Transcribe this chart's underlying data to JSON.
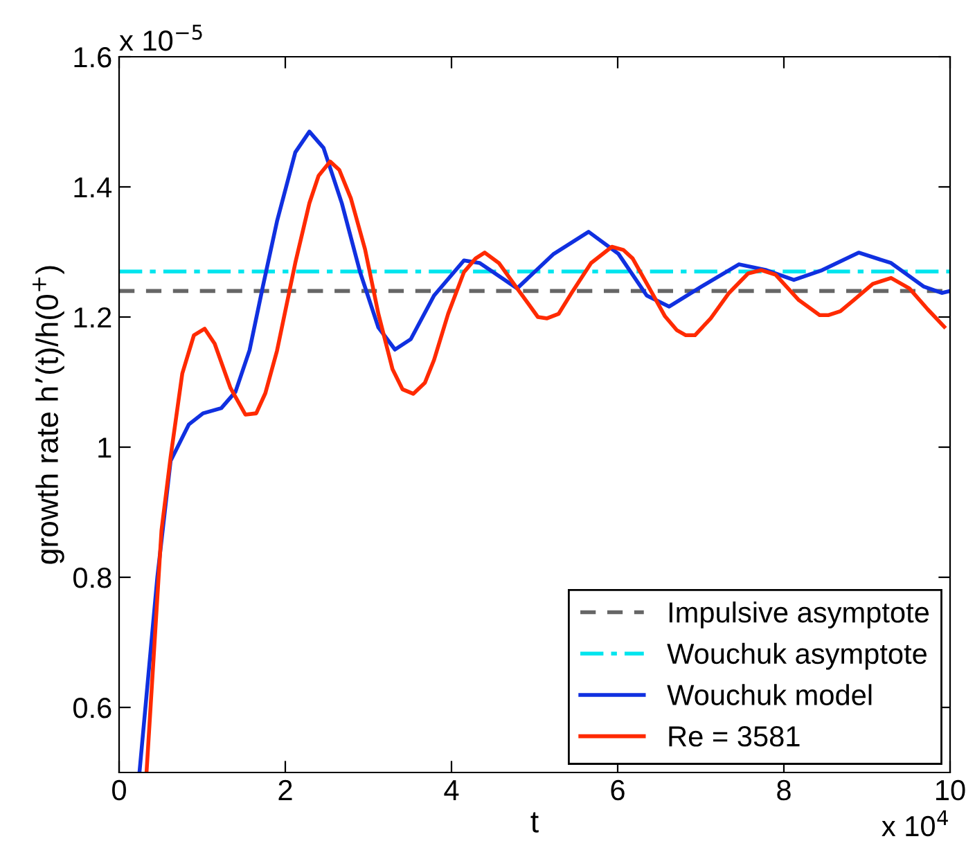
{
  "chart_data": {
    "type": "line",
    "xlabel": "t",
    "ylabel": "growth rate h’(t)/h(0$^{+}$)",
    "annotations": [
      "x 10$^{−5}$",
      "x 10$^{4}$"
    ],
    "xlim": [
      0,
      10
    ],
    "xticks": [
      0,
      2,
      4,
      6,
      8,
      10
    ],
    "ylim": [
      0.5,
      1.6
    ],
    "yticks": [
      0.6,
      0.8,
      1,
      1.2,
      1.4,
      1.6
    ],
    "grid": false,
    "legend": "bottom right",
    "ref_lines": [
      {
        "axis": "y",
        "value": 1.24,
        "label": "Impulsive asymptote",
        "color": "#666666",
        "line_style": "dashed"
      },
      {
        "axis": "y",
        "value": 1.27,
        "label": "Wouchuk asymptote",
        "color": "#00e5ee",
        "line_style": "dashdot"
      }
    ],
    "series": [
      {
        "name": "Wouchuk model",
        "color": "#1030e0",
        "x": [
          0.245,
          0.46,
          0.62,
          0.84,
          1.01,
          1.23,
          1.4,
          1.57,
          1.73,
          1.9,
          2.12,
          2.29,
          2.46,
          2.68,
          2.9,
          3.12,
          3.32,
          3.51,
          3.79,
          4.15,
          4.34,
          4.79,
          5.23,
          5.65,
          6.01,
          6.35,
          6.62,
          7.01,
          7.46,
          7.79,
          8.12,
          8.46,
          8.9,
          9.29,
          9.68,
          9.9,
          10
        ],
        "values": [
          0.5,
          0.8,
          0.979,
          1.035,
          1.052,
          1.06,
          1.085,
          1.149,
          1.247,
          1.347,
          1.453,
          1.485,
          1.46,
          1.375,
          1.269,
          1.184,
          1.15,
          1.166,
          1.233,
          1.287,
          1.283,
          1.244,
          1.297,
          1.331,
          1.297,
          1.233,
          1.216,
          1.247,
          1.281,
          1.272,
          1.257,
          1.272,
          1.299,
          1.283,
          1.247,
          1.237,
          1.24
        ]
      },
      {
        "name": "Re = 3581",
        "color": "#ff2a00",
        "x": [
          0.33,
          0.51,
          0.62,
          0.76,
          0.9,
          1.03,
          1.15,
          1.34,
          1.52,
          1.65,
          1.76,
          1.9,
          2.12,
          2.29,
          2.4,
          2.54,
          2.65,
          2.79,
          2.96,
          3.12,
          3.29,
          3.41,
          3.54,
          3.68,
          3.79,
          3.96,
          4.15,
          4.29,
          4.4,
          4.57,
          4.79,
          5.04,
          5.15,
          5.29,
          5.46,
          5.68,
          5.93,
          6.07,
          6.18,
          6.37,
          6.57,
          6.71,
          6.82,
          6.93,
          7.12,
          7.34,
          7.57,
          7.73,
          7.9,
          8.18,
          8.43,
          8.54,
          8.68,
          8.84,
          9.07,
          9.29,
          9.51,
          9.73,
          9.93
        ],
        "values": [
          0.5,
          0.872,
          0.985,
          1.113,
          1.172,
          1.182,
          1.159,
          1.091,
          1.05,
          1.052,
          1.083,
          1.148,
          1.283,
          1.375,
          1.417,
          1.439,
          1.426,
          1.382,
          1.304,
          1.205,
          1.12,
          1.089,
          1.082,
          1.099,
          1.134,
          1.205,
          1.269,
          1.29,
          1.299,
          1.283,
          1.244,
          1.2,
          1.198,
          1.205,
          1.24,
          1.283,
          1.308,
          1.303,
          1.29,
          1.247,
          1.201,
          1.18,
          1.172,
          1.172,
          1.198,
          1.237,
          1.267,
          1.272,
          1.265,
          1.226,
          1.203,
          1.203,
          1.209,
          1.226,
          1.251,
          1.26,
          1.244,
          1.212,
          1.185
        ]
      }
    ]
  }
}
